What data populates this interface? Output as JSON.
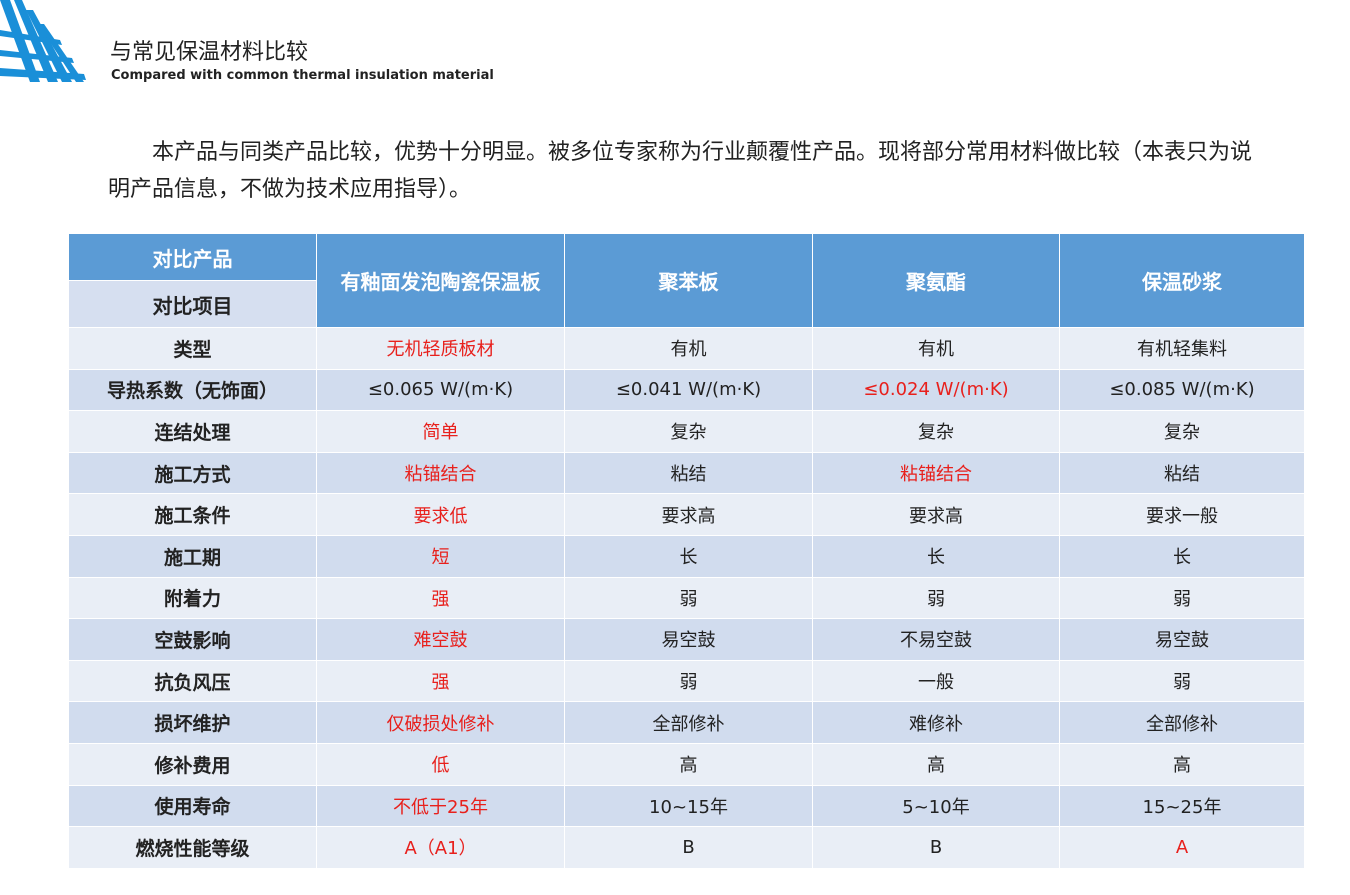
{
  "header": {
    "title": "与常见保温材料比较",
    "subtitle": "Compared with common thermal insulation material"
  },
  "intro": "本产品与同类产品比较，优势十分明显。被多位专家称为行业颠覆性产品。现将部分常用材料做比较（本表只为说明产品信息，不做为技术应用指导）。",
  "table": {
    "corner_top": "对比产品",
    "corner_bottom": "对比项目",
    "columns": [
      "有釉面发泡陶瓷保温板",
      "聚苯板",
      "聚氨酯",
      "保温砂浆"
    ],
    "highlight_color": "#e8201c",
    "rows": [
      {
        "label": "类型",
        "cells": [
          "无机轻质板材",
          "有机",
          "有机",
          "有机轻集料"
        ],
        "highlight": [
          true,
          false,
          false,
          false
        ]
      },
      {
        "label": "导热系数（无饰面）",
        "cells": [
          "≤0.065 W/(m·K)",
          "≤0.041 W/(m·K)",
          "≤0.024 W/(m·K)",
          "≤0.085 W/(m·K)"
        ],
        "highlight": [
          false,
          false,
          true,
          false
        ]
      },
      {
        "label": "连结处理",
        "cells": [
          "简单",
          "复杂",
          "复杂",
          "复杂"
        ],
        "highlight": [
          true,
          false,
          false,
          false
        ]
      },
      {
        "label": "施工方式",
        "cells": [
          "粘锚结合",
          "粘结",
          "粘锚结合",
          "粘结"
        ],
        "highlight": [
          true,
          false,
          true,
          false
        ]
      },
      {
        "label": "施工条件",
        "cells": [
          "要求低",
          "要求高",
          "要求高",
          "要求一般"
        ],
        "highlight": [
          true,
          false,
          false,
          false
        ]
      },
      {
        "label": "施工期",
        "cells": [
          "短",
          "长",
          "长",
          "长"
        ],
        "highlight": [
          true,
          false,
          false,
          false
        ]
      },
      {
        "label": "附着力",
        "cells": [
          "强",
          "弱",
          "弱",
          "弱"
        ],
        "highlight": [
          true,
          false,
          false,
          false
        ]
      },
      {
        "label": "空鼓影响",
        "cells": [
          "难空鼓",
          "易空鼓",
          "不易空鼓",
          "易空鼓"
        ],
        "highlight": [
          true,
          false,
          false,
          false
        ]
      },
      {
        "label": "抗负风压",
        "cells": [
          "强",
          "弱",
          "一般",
          "弱"
        ],
        "highlight": [
          true,
          false,
          false,
          false
        ]
      },
      {
        "label": "损坏维护",
        "cells": [
          "仅破损处修补",
          "全部修补",
          "难修补",
          "全部修补"
        ],
        "highlight": [
          true,
          false,
          false,
          false
        ]
      },
      {
        "label": "修补费用",
        "cells": [
          "低",
          "高",
          "高",
          "高"
        ],
        "highlight": [
          true,
          false,
          false,
          false
        ]
      },
      {
        "label": "使用寿命",
        "cells": [
          "不低于25年",
          "10~15年",
          "5~10年",
          "15~25年"
        ],
        "highlight": [
          true,
          false,
          false,
          false
        ]
      },
      {
        "label": "燃烧性能等级",
        "cells": [
          "A（A1）",
          "B",
          "B",
          "A"
        ],
        "highlight": [
          true,
          false,
          false,
          true
        ]
      }
    ]
  }
}
